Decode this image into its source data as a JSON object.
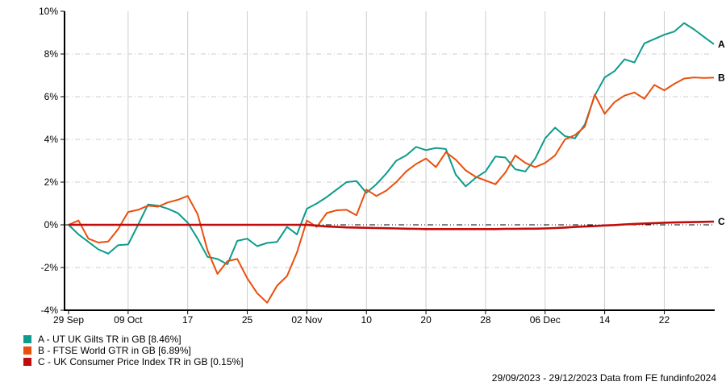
{
  "footer": {
    "text": "29/09/2023 - 29/12/2023 Data from FE fundinfo2024"
  },
  "legend": {
    "items": [
      {
        "key": "A",
        "label": "A - UT UK Gilts TR in GB [8.46%]",
        "color": "#0d9b8c"
      },
      {
        "key": "B",
        "label": "B - FTSE World GTR in GB [6.89%]",
        "color": "#ea4e0d"
      },
      {
        "key": "C",
        "label": "C - UK Consumer Price Index TR in GB [0.15%]",
        "color": "#c00c0c"
      }
    ]
  },
  "colors": {
    "series_a": "#0d9b8c",
    "series_b": "#ea4e0d",
    "series_c": "#c00c0c",
    "gridline": "#cccccc",
    "axis": "#000000",
    "zero_line": "#000000",
    "background": "#ffffff",
    "text": "#000000"
  },
  "chart_data": {
    "type": "line",
    "title": "",
    "xlabel": "",
    "ylabel": "",
    "date_range": "29/09/2023 - 29/12/2023",
    "x_unit": "weekday index from 29 Sep 2023",
    "n_points": 66,
    "ylim": [
      -4,
      10
    ],
    "grid": "vertical solid at date ticks, horizontal dash-dot at 2% steps, black dash-dot zero line",
    "legend_position": "bottom-left",
    "y_ticks": [
      10,
      8,
      6,
      4,
      2,
      0,
      -2,
      -4
    ],
    "y_tick_labels": [
      "10%",
      "8%",
      "6%",
      "4%",
      "2%",
      "0%",
      "-2%",
      "-4%"
    ],
    "x_tick_indices": [
      0,
      6,
      12,
      18,
      24,
      30,
      36,
      42,
      48,
      54,
      60
    ],
    "x_tick_labels": [
      "29 Sep",
      "09 Oct",
      "17",
      "25",
      "02 Nov",
      "10",
      "20",
      "28",
      "06 Dec",
      "14",
      "22"
    ],
    "series": [
      {
        "key": "A",
        "name": "UT UK Gilts TR in GB",
        "final_value": "8.46%",
        "color": "#0d9b8c",
        "width": 2,
        "values": [
          0.0,
          -0.45,
          -0.8,
          -1.15,
          -1.35,
          -0.95,
          -0.92,
          0.0,
          0.95,
          0.9,
          0.75,
          0.55,
          0.1,
          -0.65,
          -1.5,
          -1.6,
          -1.85,
          -0.75,
          -0.65,
          -1.0,
          -0.85,
          -0.8,
          -0.1,
          -0.45,
          0.75,
          1.0,
          1.3,
          1.65,
          2.0,
          2.05,
          1.5,
          1.9,
          2.4,
          3.0,
          3.25,
          3.65,
          3.5,
          3.6,
          3.55,
          2.35,
          1.8,
          2.2,
          2.5,
          3.2,
          3.15,
          2.6,
          2.5,
          3.1,
          4.05,
          4.55,
          4.15,
          4.05,
          4.7,
          6.05,
          6.9,
          7.2,
          7.75,
          7.6,
          8.5,
          8.7,
          8.9,
          9.05,
          9.45,
          9.15,
          8.8,
          8.46
        ]
      },
      {
        "key": "B",
        "name": "FTSE World GTR in GB",
        "final_value": "6.89%",
        "color": "#ea4e0d",
        "width": 2,
        "values": [
          0.0,
          0.2,
          -0.65,
          -0.83,
          -0.78,
          -0.2,
          0.6,
          0.7,
          0.9,
          0.85,
          1.05,
          1.17,
          1.35,
          0.5,
          -1.2,
          -2.3,
          -1.7,
          -1.6,
          -2.5,
          -3.2,
          -3.65,
          -2.85,
          -2.4,
          -1.3,
          0.2,
          -0.1,
          0.55,
          0.68,
          0.7,
          0.45,
          1.65,
          1.35,
          1.6,
          2.0,
          2.5,
          2.85,
          3.1,
          2.7,
          3.4,
          3.05,
          2.55,
          2.25,
          2.08,
          1.9,
          2.45,
          3.25,
          2.9,
          2.7,
          2.9,
          3.25,
          4.0,
          4.2,
          4.6,
          6.1,
          5.2,
          5.75,
          6.05,
          6.2,
          5.9,
          6.55,
          6.3,
          6.6,
          6.85,
          6.9,
          6.88,
          6.89
        ]
      },
      {
        "key": "C",
        "name": "UK Consumer Price Index TR in GB",
        "final_value": "0.15%",
        "color": "#c00c0c",
        "width": 2.6,
        "values": [
          0.0,
          0.0,
          0.0,
          0.0,
          0.0,
          0.0,
          0.0,
          0.0,
          0.0,
          0.0,
          0.0,
          0.0,
          0.0,
          0.0,
          0.0,
          0.0,
          0.0,
          0.0,
          0.0,
          0.0,
          0.0,
          0.0,
          0.0,
          0.0,
          0.0,
          -0.04,
          -0.08,
          -0.1,
          -0.12,
          -0.13,
          -0.14,
          -0.15,
          -0.16,
          -0.17,
          -0.18,
          -0.19,
          -0.2,
          -0.2,
          -0.2,
          -0.2,
          -0.2,
          -0.2,
          -0.2,
          -0.2,
          -0.19,
          -0.19,
          -0.18,
          -0.18,
          -0.17,
          -0.15,
          -0.13,
          -0.1,
          -0.08,
          -0.06,
          -0.03,
          -0.01,
          0.02,
          0.04,
          0.06,
          0.08,
          0.1,
          0.11,
          0.12,
          0.13,
          0.14,
          0.15
        ]
      }
    ]
  }
}
